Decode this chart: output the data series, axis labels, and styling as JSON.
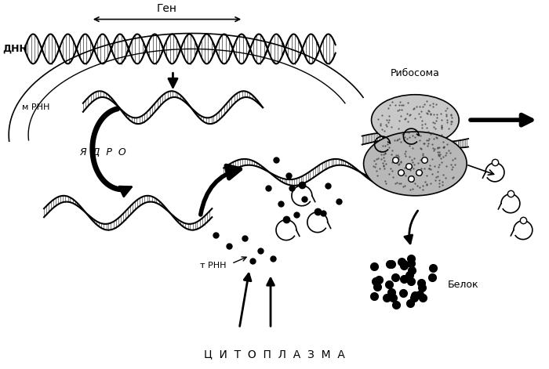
{
  "labels": {
    "gen": "Ген",
    "dna": "ДНН",
    "mrna": "м РНН",
    "yadro": "Я  Д  Р  О",
    "ribosome": "Рибосома",
    "trna": "т РНН",
    "cytoplasm": "Ц  И  Т  О  П  Л  А  З  М  А",
    "protein": "Белок"
  },
  "colors": {
    "black": "#000000",
    "white": "#ffffff",
    "gray_light": "#cccccc",
    "gray_medium": "#aaaaaa",
    "gray_dark": "#555555"
  }
}
